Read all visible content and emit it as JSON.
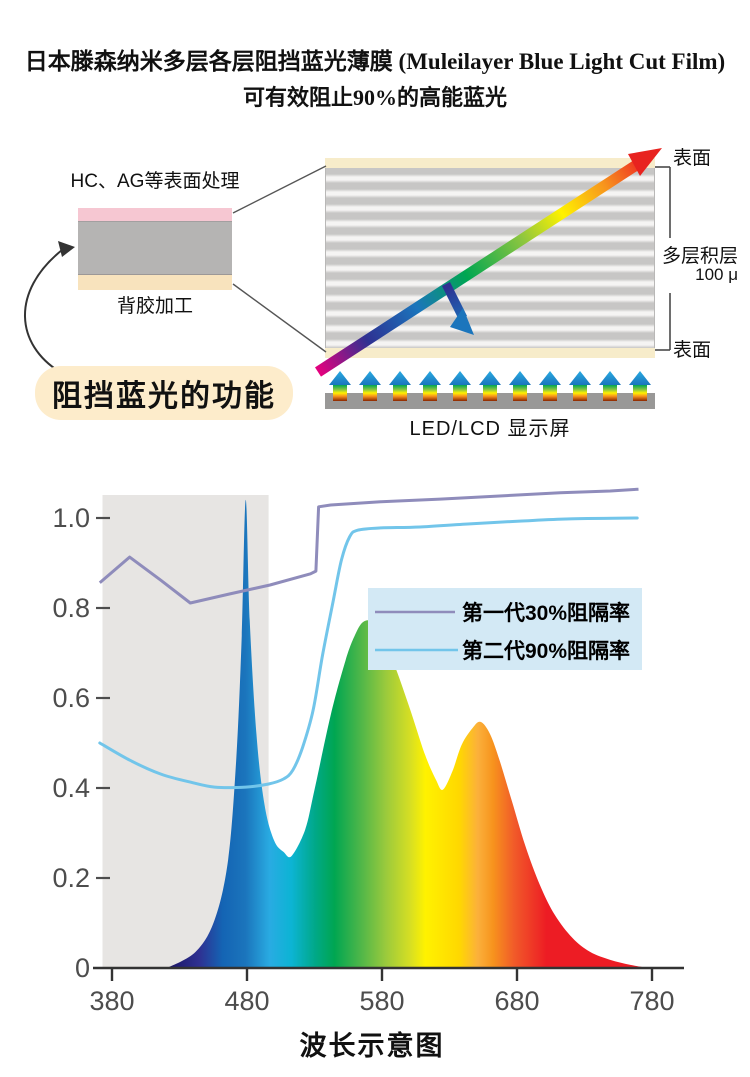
{
  "title": {
    "line1": "日本滕森纳米多层各层阻挡蓝光薄膜 (Muleilayer Blue Light Cut Film)",
    "line2": "可有效阻止90%的高能蓝光"
  },
  "film_diagram": {
    "surface_treatment_label": "HC、AG等表面处理",
    "adhesive_label": "背胶加工",
    "function_label": "阻挡蓝光的功能",
    "layer_colors": {
      "top": "#f6c7d2",
      "core": "#b5b4b3",
      "bottom": "#f8e3bd"
    }
  },
  "multilayer_diagram": {
    "surface_top_label": "表面",
    "stack_label": "多层积层",
    "thickness_label": "100 μ",
    "surface_bottom_label": "表面",
    "screen_label": "LED/LCD 显示屏",
    "led_arrow_count": 11
  },
  "chart_data": {
    "type": "area",
    "xlabel": "波长示意图",
    "x_ticks": [
      380,
      480,
      580,
      680,
      780
    ],
    "y_ticks": [
      0,
      0.2,
      0.4,
      0.6,
      0.8,
      1.0
    ],
    "y_tick_labels": [
      "0",
      "0.2",
      "0.4",
      "0.6",
      "0.8",
      "1.0"
    ],
    "xlim": [
      371,
      781
    ],
    "ylim": [
      0,
      1.1
    ],
    "grid": false,
    "legend_bg": "#d3e9f5",
    "blue_zone_color": "#e7e5e3",
    "blue_zone_nm": [
      373,
      496
    ],
    "series": [
      {
        "name": "第一代30%阻隔率",
        "color": "#8f8cbb",
        "style": "angular",
        "points": [
          [
            371,
            0.856
          ],
          [
            393,
            0.913
          ],
          [
            416,
            0.862
          ],
          [
            438,
            0.811
          ],
          [
            467,
            0.831
          ],
          [
            497,
            0.851
          ],
          [
            527,
            0.876
          ],
          [
            531,
            0.882
          ],
          [
            533,
            1.025
          ],
          [
            542,
            1.029
          ],
          [
            579,
            1.036
          ],
          [
            623,
            1.042
          ],
          [
            667,
            1.049
          ],
          [
            712,
            1.056
          ],
          [
            749,
            1.06
          ],
          [
            770,
            1.064
          ]
        ]
      },
      {
        "name": "第二代90%阻隔率",
        "color": "#72c5ea",
        "style": "smooth",
        "points": [
          [
            371,
            0.5
          ],
          [
            393,
            0.462
          ],
          [
            416,
            0.431
          ],
          [
            438,
            0.413
          ],
          [
            456,
            0.402
          ],
          [
            479,
            0.402
          ],
          [
            496,
            0.409
          ],
          [
            507,
            0.42
          ],
          [
            514,
            0.44
          ],
          [
            521,
            0.489
          ],
          [
            529,
            0.573
          ],
          [
            536,
            0.696
          ],
          [
            544,
            0.818
          ],
          [
            550,
            0.907
          ],
          [
            556,
            0.958
          ],
          [
            562,
            0.973
          ],
          [
            579,
            0.978
          ],
          [
            608,
            0.98
          ],
          [
            645,
            0.987
          ],
          [
            682,
            0.993
          ],
          [
            719,
            0.998
          ],
          [
            769,
            1.0
          ]
        ]
      }
    ],
    "spectrum": {
      "points": [
        [
          421,
          0
        ],
        [
          442,
          0.036
        ],
        [
          456,
          0.107
        ],
        [
          466,
          0.24
        ],
        [
          472,
          0.462
        ],
        [
          476,
          0.729
        ],
        [
          479,
          1.04
        ],
        [
          482,
          0.773
        ],
        [
          487,
          0.518
        ],
        [
          493,
          0.362
        ],
        [
          500,
          0.284
        ],
        [
          507,
          0.258
        ],
        [
          513,
          0.249
        ],
        [
          523,
          0.307
        ],
        [
          530,
          0.396
        ],
        [
          542,
          0.562
        ],
        [
          553,
          0.684
        ],
        [
          560,
          0.74
        ],
        [
          566,
          0.769
        ],
        [
          573,
          0.769
        ],
        [
          580,
          0.738
        ],
        [
          590,
          0.667
        ],
        [
          601,
          0.573
        ],
        [
          612,
          0.473
        ],
        [
          620,
          0.418
        ],
        [
          625,
          0.396
        ],
        [
          632,
          0.436
        ],
        [
          639,
          0.496
        ],
        [
          647,
          0.533
        ],
        [
          653,
          0.547
        ],
        [
          660,
          0.52
        ],
        [
          667,
          0.462
        ],
        [
          676,
          0.373
        ],
        [
          686,
          0.273
        ],
        [
          697,
          0.184
        ],
        [
          708,
          0.118
        ],
        [
          721,
          0.067
        ],
        [
          734,
          0.036
        ],
        [
          749,
          0.018
        ],
        [
          764,
          0.007
        ],
        [
          777,
          0
        ]
      ],
      "gradient": [
        [
          0,
          "#1b1464"
        ],
        [
          0.067,
          "#2e3192"
        ],
        [
          0.115,
          "#1464b4"
        ],
        [
          0.163,
          "#1b75bc"
        ],
        [
          0.213,
          "#29abe2"
        ],
        [
          0.258,
          "#0cb4d4"
        ],
        [
          0.309,
          "#00a886"
        ],
        [
          0.348,
          "#00a651"
        ],
        [
          0.407,
          "#55b848"
        ],
        [
          0.455,
          "#9bca3c"
        ],
        [
          0.506,
          "#d7df23"
        ],
        [
          0.537,
          "#fff200"
        ],
        [
          0.607,
          "#ffd800"
        ],
        [
          0.646,
          "#fbb03b"
        ],
        [
          0.677,
          "#f7941d"
        ],
        [
          0.722,
          "#f15a29"
        ],
        [
          0.789,
          "#ed1c24"
        ],
        [
          1,
          "#ed1c24"
        ]
      ]
    }
  }
}
